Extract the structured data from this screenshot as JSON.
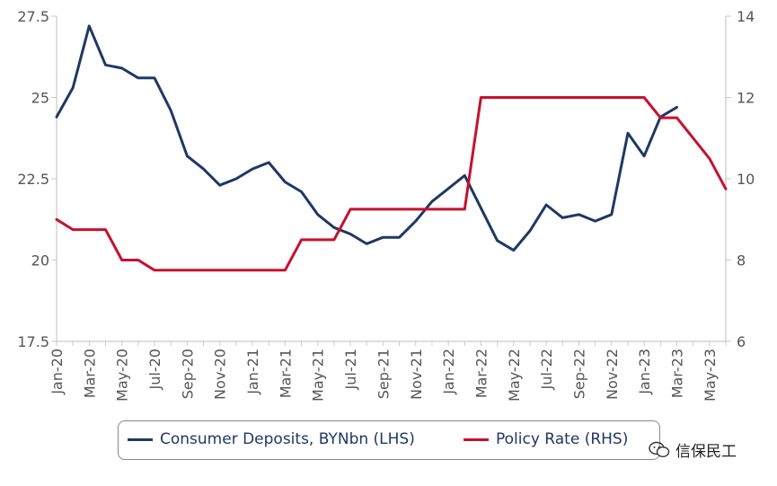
{
  "chart_data": {
    "type": "line",
    "x": [
      "Jan-20",
      "Feb-20",
      "Mar-20",
      "Apr-20",
      "May-20",
      "Jun-20",
      "Jul-20",
      "Aug-20",
      "Sep-20",
      "Oct-20",
      "Nov-20",
      "Dec-20",
      "Jan-21",
      "Feb-21",
      "Mar-21",
      "Apr-21",
      "May-21",
      "Jun-21",
      "Jul-21",
      "Aug-21",
      "Sep-21",
      "Oct-21",
      "Nov-21",
      "Dec-21",
      "Jan-22",
      "Feb-22",
      "Mar-22",
      "Apr-22",
      "May-22",
      "Jun-22",
      "Jul-22",
      "Aug-22",
      "Sep-22",
      "Oct-22",
      "Nov-22",
      "Dec-22",
      "Jan-23",
      "Feb-23",
      "Mar-23",
      "Apr-23",
      "May-23",
      "Jun-23"
    ],
    "x_tick_labels": [
      "Jan-20",
      "Mar-20",
      "May-20",
      "Jul-20",
      "Sep-20",
      "Nov-20",
      "Jan-21",
      "Mar-21",
      "May-21",
      "Jul-21",
      "Sep-21",
      "Nov-21",
      "Jan-22",
      "Mar-22",
      "May-22",
      "Jul-22",
      "Sep-22",
      "Nov-22",
      "Jan-23",
      "Mar-23",
      "May-23"
    ],
    "left_axis": {
      "ylim": [
        17.5,
        27.5
      ],
      "ticks": [
        "17.5",
        "20",
        "22.5",
        "25",
        "27.5"
      ]
    },
    "right_axis": {
      "ylim": [
        6,
        14
      ],
      "ticks": [
        "6",
        "8",
        "10",
        "12",
        "14"
      ]
    },
    "series": [
      {
        "name": "Consumer Deposits, BYNbn (LHS)",
        "axis": "left",
        "color": "#1f3864",
        "values": [
          24.4,
          25.3,
          27.2,
          26.0,
          25.9,
          25.6,
          25.6,
          24.6,
          23.2,
          22.8,
          22.3,
          22.5,
          22.8,
          23.0,
          22.4,
          22.1,
          21.4,
          21.0,
          20.8,
          20.5,
          20.7,
          20.7,
          21.2,
          21.8,
          22.2,
          22.6,
          21.6,
          20.6,
          20.3,
          20.9,
          21.7,
          21.3,
          21.4,
          21.2,
          21.4,
          23.9,
          23.2,
          24.4,
          24.7,
          null,
          null,
          null
        ]
      },
      {
        "name": "Policy Rate (RHS)",
        "axis": "right",
        "color": "#c8102e",
        "values": [
          9.0,
          8.75,
          8.75,
          8.75,
          8.0,
          8.0,
          7.75,
          7.75,
          7.75,
          7.75,
          7.75,
          7.75,
          7.75,
          7.75,
          7.75,
          8.5,
          8.5,
          8.5,
          9.25,
          9.25,
          9.25,
          9.25,
          9.25,
          9.25,
          9.25,
          9.25,
          12.0,
          12.0,
          12.0,
          12.0,
          12.0,
          12.0,
          12.0,
          12.0,
          12.0,
          12.0,
          12.0,
          11.5,
          11.5,
          11.0,
          10.5,
          9.75
        ]
      }
    ],
    "legend_position": "bottom",
    "grid": false
  },
  "watermark": {
    "text": "信保民工",
    "icon": "wechat-icon"
  }
}
